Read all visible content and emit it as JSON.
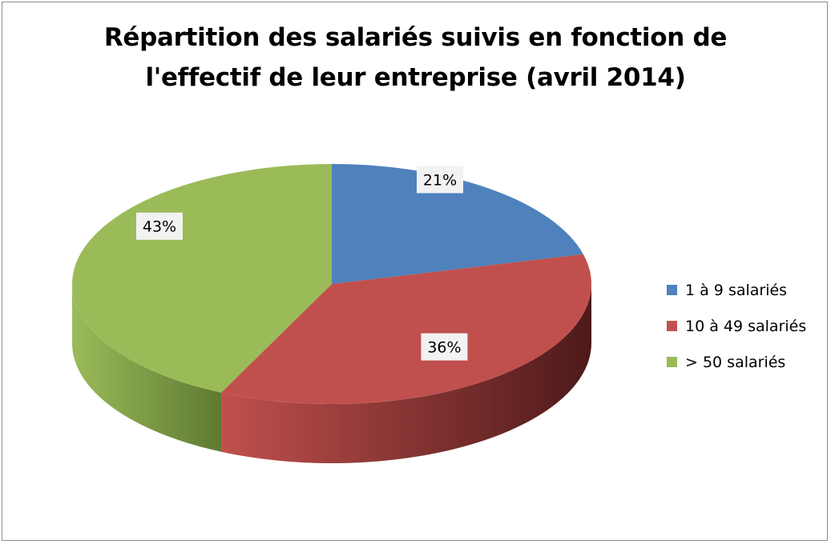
{
  "chart_data": {
    "type": "pie",
    "title_lines": [
      "Répartition des salariés suivis en fonction de",
      "l'effectif de leur entreprise (avril 2014)"
    ],
    "slices": [
      {
        "name": "1 à 9 salariés",
        "value": 21,
        "label": "21%",
        "color": "#4f81bd",
        "dark": "#2b4a6f"
      },
      {
        "name": "10 à 49 salariés",
        "value": 36,
        "label": "36%",
        "color": "#c0504d",
        "dark": "#4e1a1a"
      },
      {
        "name": "> 50 salariés",
        "value": 43,
        "label": "43%",
        "color": "#9bbb59",
        "dark": "#5f7a32"
      }
    ],
    "legend_position": "right",
    "style": "3d"
  }
}
